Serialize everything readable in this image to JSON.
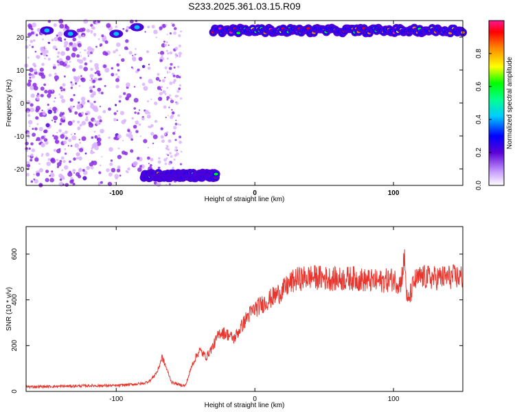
{
  "title": "S233.2025.361.03.15.R09",
  "chart_data": [
    {
      "type": "heatmap",
      "xlabel": "Height of straight line (km)",
      "ylabel": "Frequency (Hz)",
      "xlim": [
        -165,
        150
      ],
      "ylim": [
        -25,
        25
      ],
      "xticks": [
        -100,
        0,
        100
      ],
      "yticks": [
        -20,
        -10,
        0,
        10,
        20
      ],
      "colorbar": {
        "label": "Normalized spectral amplitude",
        "range": [
          0,
          1
        ],
        "ticks": [
          "0.0",
          "0.2",
          "0.4",
          "0.6",
          "0.8"
        ]
      },
      "colormap": [
        "#ffffff",
        "#d9b3ff",
        "#8a2be2",
        "#4b00d9",
        "#0000ff",
        "#00bfff",
        "#00ff80",
        "#00ff00",
        "#ffff00",
        "#ff8000",
        "#ff0000",
        "#ff1493"
      ],
      "bright_band_frequency_hz": 22,
      "features": [
        {
          "name": "upper band",
          "x_range": [
            -30,
            150
          ],
          "freq": 22
        },
        {
          "name": "lower band",
          "x_range": [
            -80,
            -28
          ],
          "freq": -22
        }
      ]
    },
    {
      "type": "line",
      "xlabel": "Height of straight line (km)",
      "ylabel": "SNR (10 * v/v)",
      "xlim": [
        -165,
        150
      ],
      "ylim": [
        0,
        720
      ],
      "xticks": [
        -100,
        0,
        100
      ],
      "yticks": [
        0,
        200,
        400,
        600
      ],
      "line_color": "#e8362e",
      "series": [
        {
          "x": [
            -165,
            -140,
            -120,
            -100,
            -90,
            -80,
            -75,
            -70,
            -67,
            -65,
            -60,
            -55,
            -50,
            -45,
            -40,
            -35,
            -30,
            -25,
            -20,
            -15,
            -10,
            -5,
            0,
            5,
            10,
            15,
            20,
            25,
            30,
            40,
            50,
            60,
            70,
            80,
            90,
            100,
            105,
            108,
            110,
            115,
            120,
            130,
            140,
            150
          ],
          "y": [
            20,
            22,
            25,
            25,
            30,
            35,
            50,
            90,
            150,
            120,
            40,
            30,
            25,
            120,
            180,
            150,
            200,
            260,
            250,
            230,
            280,
            330,
            360,
            380,
            400,
            420,
            440,
            470,
            490,
            500,
            495,
            490,
            495,
            485,
            480,
            490,
            470,
            580,
            380,
            480,
            500,
            495,
            500,
            500
          ]
        }
      ]
    }
  ]
}
